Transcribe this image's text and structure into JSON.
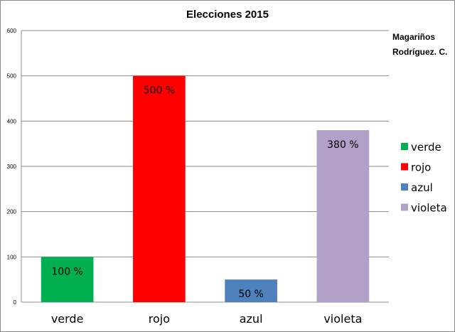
{
  "chart_data": {
    "type": "bar",
    "title": "Elecciones 2015",
    "annotation": [
      "Magariños",
      "Rodríguez. C."
    ],
    "categories": [
      "verde",
      "rojo",
      "azul",
      "violeta"
    ],
    "values": [
      100,
      500,
      50,
      380
    ],
    "data_labels": [
      "100 %",
      "500 %",
      "50 %",
      "380 %"
    ],
    "colors": [
      "#00b050",
      "#ff0000",
      "#4f81bd",
      "#b1a0c7"
    ],
    "ylim": [
      0,
      600
    ],
    "yticks": [
      0,
      100,
      200,
      300,
      400,
      500,
      600
    ],
    "grid": true,
    "legend_position": "right"
  }
}
